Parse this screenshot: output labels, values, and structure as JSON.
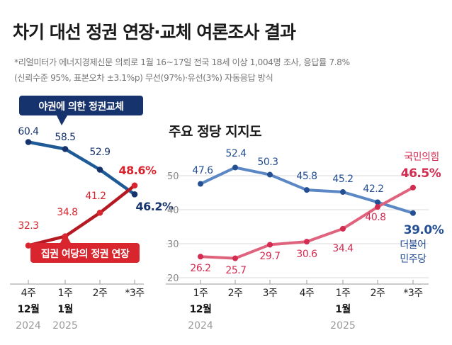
{
  "title": "차기 대선 정권 연장·교체 여론조사 결과",
  "notes": [
    "*리얼미터가 에너지경제신문 의뢰로 1월 16~17일 전국 18세 이상 1,004명 조사, 응답률 7.8%",
    "(신뢰수준 95%, 표본오차 ±3.1%p) 무선(97%)·유선(3%) 자동응답 방식"
  ],
  "colors": {
    "change": "#17336e",
    "change_line": "#1d5a96",
    "extend": "#d8252e",
    "extend_line": "#b51a23",
    "dp_line": "#5b87c5",
    "dp_label": "#244f93",
    "ppp_line": "#e0637e",
    "ppp_label": "#d42c51",
    "grid": "#d9d9d9"
  },
  "chart_data": [
    {
      "type": "line",
      "title": "",
      "categories": [
        {
          "week": "4주",
          "month": "12월",
          "year": "2024"
        },
        {
          "week": "1주",
          "month": "1월",
          "year": "2025"
        },
        {
          "week": "2주",
          "month": "",
          "year": ""
        },
        {
          "week": "*3주",
          "month": "",
          "year": ""
        }
      ],
      "series": [
        {
          "name": "야권에 의한 정권교체",
          "values": [
            60.4,
            58.5,
            52.9,
            46.2
          ],
          "labels": [
            "60.4",
            "58.5",
            "52.9",
            "46.2%"
          ]
        },
        {
          "name": "집권 여당의 정권 연장",
          "values": [
            32.3,
            34.8,
            41.2,
            48.6
          ],
          "labels": [
            "32.3",
            "34.8",
            "41.2",
            "48.6%"
          ]
        }
      ],
      "ylim": [
        25,
        65
      ],
      "yticks": [],
      "grid": false,
      "legend": "inline labels"
    },
    {
      "type": "line",
      "title": "주요 정당 지지도",
      "categories": [
        {
          "week": "1주",
          "month": "12월",
          "year": "2024"
        },
        {
          "week": "2주",
          "month": "",
          "year": ""
        },
        {
          "week": "3주",
          "month": "",
          "year": ""
        },
        {
          "week": "4주",
          "month": "",
          "year": ""
        },
        {
          "week": "1주",
          "month": "1월",
          "year": "2025"
        },
        {
          "week": "2주",
          "month": "",
          "year": ""
        },
        {
          "week": "*3주",
          "month": "",
          "year": ""
        }
      ],
      "series": [
        {
          "name": "더불어민주당",
          "name_lines": [
            "더불어",
            "민주당"
          ],
          "values": [
            47.6,
            52.4,
            50.3,
            45.8,
            45.2,
            42.2,
            39.0
          ],
          "labels": [
            "47.6",
            "52.4",
            "50.3",
            "45.8",
            "45.2",
            "42.2",
            "39.0%"
          ]
        },
        {
          "name": "국민의힘",
          "name_lines": [
            "국민의힘"
          ],
          "values": [
            26.2,
            25.7,
            29.7,
            30.6,
            34.4,
            40.8,
            46.5
          ],
          "labels": [
            "26.2",
            "25.7",
            "29.7",
            "30.6",
            "34.4",
            "40.8",
            "46.5%"
          ]
        }
      ],
      "ylim": [
        20,
        55
      ],
      "yticks": [
        20,
        30,
        40,
        50
      ],
      "grid": true,
      "legend": "inline labels"
    }
  ]
}
